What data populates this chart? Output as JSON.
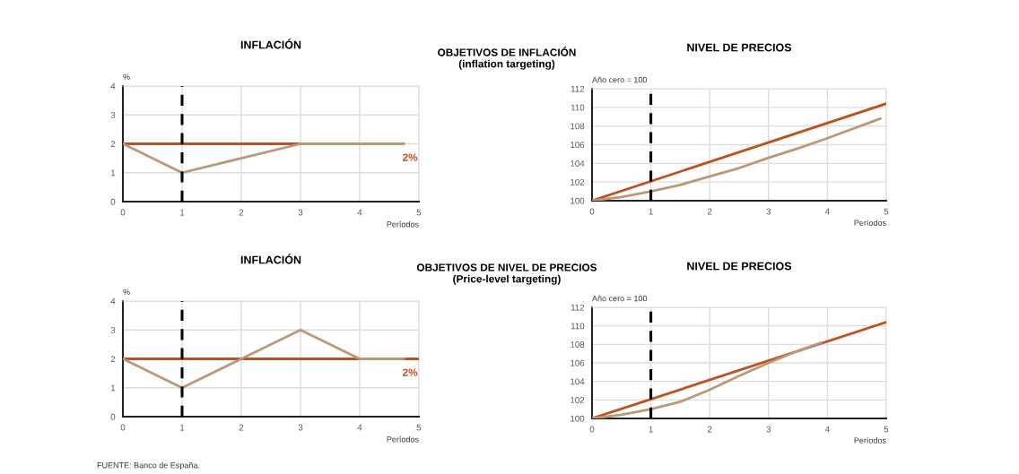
{
  "chart_data": [
    {
      "type": "line",
      "title": "INFLACIÓN",
      "ylabel": "%",
      "xlabel": "Períodos",
      "xlim": [
        0,
        5
      ],
      "ylim": [
        0,
        4
      ],
      "xticks": [
        0,
        1,
        2,
        3,
        4,
        5
      ],
      "yticks": [
        0,
        1,
        2,
        3,
        4
      ],
      "grid": true,
      "line_style": "solid",
      "annotations": [
        "OBJETIVOS DE INFLACIÓN\n(inflation targeting)",
        "2%"
      ],
      "ref_lines": [
        {
          "axis": "x",
          "value": 1,
          "color": "#000000",
          "line_style": "dashed"
        }
      ],
      "series": [
        {
          "color": "#c0501f",
          "x": [
            0,
            3
          ],
          "values": [
            2,
            2
          ]
        },
        {
          "color": "#b9997a",
          "x": [
            0,
            1,
            3,
            4.75
          ],
          "values": [
            2,
            1,
            2,
            2
          ]
        }
      ]
    },
    {
      "type": "line",
      "title": "NIVEL DE PRECIOS",
      "ylabel": "Año cero = 100",
      "xlabel": "Períodos",
      "xlim": [
        0,
        5
      ],
      "ylim": [
        100,
        112
      ],
      "xticks": [
        0,
        1,
        2,
        3,
        4,
        5
      ],
      "yticks": [
        100,
        102,
        104,
        106,
        108,
        110,
        112
      ],
      "grid": true,
      "line_style": "solid",
      "ref_lines": [
        {
          "axis": "x",
          "value": 1,
          "color": "#000000",
          "line_style": "dashed"
        }
      ],
      "series": [
        {
          "color": "#c0501f",
          "x": [
            0,
            5
          ],
          "values": [
            100,
            110.4
          ]
        },
        {
          "color": "#b9997a",
          "x": [
            0,
            0.5,
            1,
            1.5,
            2,
            2.5,
            3,
            3.5,
            4,
            4.9
          ],
          "values": [
            100,
            100.4,
            101,
            101.7,
            102.6,
            103.5,
            104.6,
            105.6,
            106.7,
            108.8
          ]
        }
      ]
    },
    {
      "type": "line",
      "title": "INFLACIÓN",
      "ylabel": "%",
      "xlabel": "Períodos",
      "xlim": [
        0,
        5
      ],
      "ylim": [
        0,
        4
      ],
      "xticks": [
        0,
        1,
        2,
        3,
        4,
        5
      ],
      "yticks": [
        0,
        1,
        2,
        3,
        4
      ],
      "grid": true,
      "line_style": "solid",
      "annotations": [
        "OBJETIVOS DE NIVEL DE PRECIOS\n(Price-level targeting)",
        "2%",
        "FUENTE: Banco de España."
      ],
      "ref_lines": [
        {
          "axis": "x",
          "value": 1,
          "color": "#000000",
          "line_style": "dashed"
        }
      ],
      "series": [
        {
          "color": "#c0501f",
          "x": [
            0,
            5
          ],
          "values": [
            2,
            2
          ]
        },
        {
          "color": "#b9997a",
          "x": [
            0,
            1,
            2,
            3,
            4,
            4.75
          ],
          "values": [
            2,
            1,
            2,
            3,
            2,
            2
          ]
        }
      ]
    },
    {
      "type": "line",
      "title": "NIVEL DE PRECIOS",
      "ylabel": "Año cero = 100",
      "xlabel": "Períodos",
      "xlim": [
        0,
        5
      ],
      "ylim": [
        100,
        112
      ],
      "xticks": [
        0,
        1,
        2,
        3,
        4,
        5
      ],
      "yticks": [
        100,
        102,
        104,
        106,
        108,
        110,
        112
      ],
      "grid": true,
      "line_style": "solid",
      "ref_lines": [
        {
          "axis": "x",
          "value": 1,
          "color": "#000000",
          "line_style": "dashed"
        }
      ],
      "series": [
        {
          "color": "#c0501f",
          "x": [
            0,
            5
          ],
          "values": [
            100,
            110.4
          ]
        },
        {
          "color": "#b9997a",
          "x": [
            0,
            0.5,
            1,
            1.5,
            2,
            2.5,
            3,
            3.5,
            3.9
          ],
          "values": [
            100,
            100.4,
            101,
            101.8,
            103.1,
            104.6,
            106,
            107.3,
            108.2
          ]
        }
      ]
    }
  ]
}
